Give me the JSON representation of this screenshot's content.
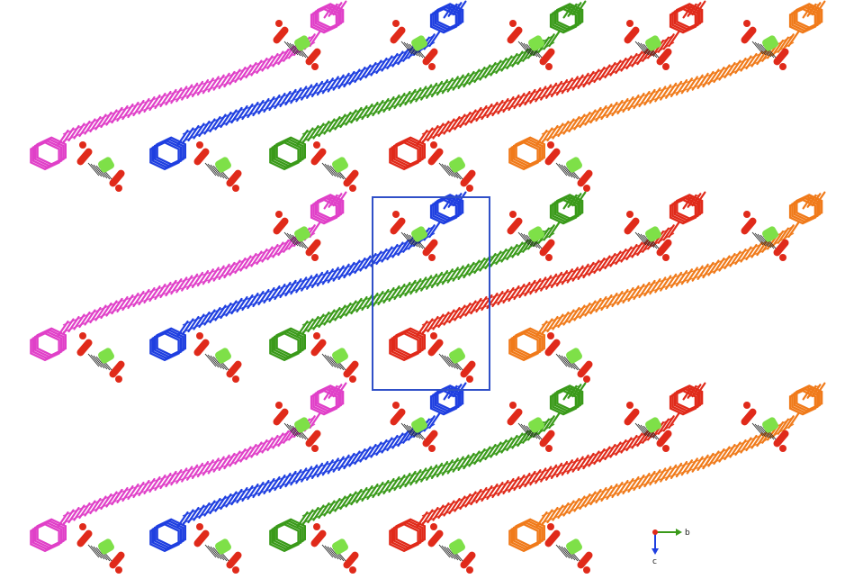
{
  "figure": {
    "background": "#ffffff",
    "chain_colors": [
      "#e040c8",
      "#1f3fe0",
      "#3a9a1a",
      "#e02a1a",
      "#f07a1a"
    ],
    "ring_fill": "#7ee048",
    "oxygen_color": "#e02a1a",
    "hbond_color": "#2a2a2a",
    "unit_cell_color": "#3050c8"
  },
  "axes_indicator": {
    "origin_color": "#e02a1a",
    "b_color": "#3a9a1a",
    "c_color": "#1f3fe0",
    "b_label": "b",
    "c_label": "c"
  }
}
